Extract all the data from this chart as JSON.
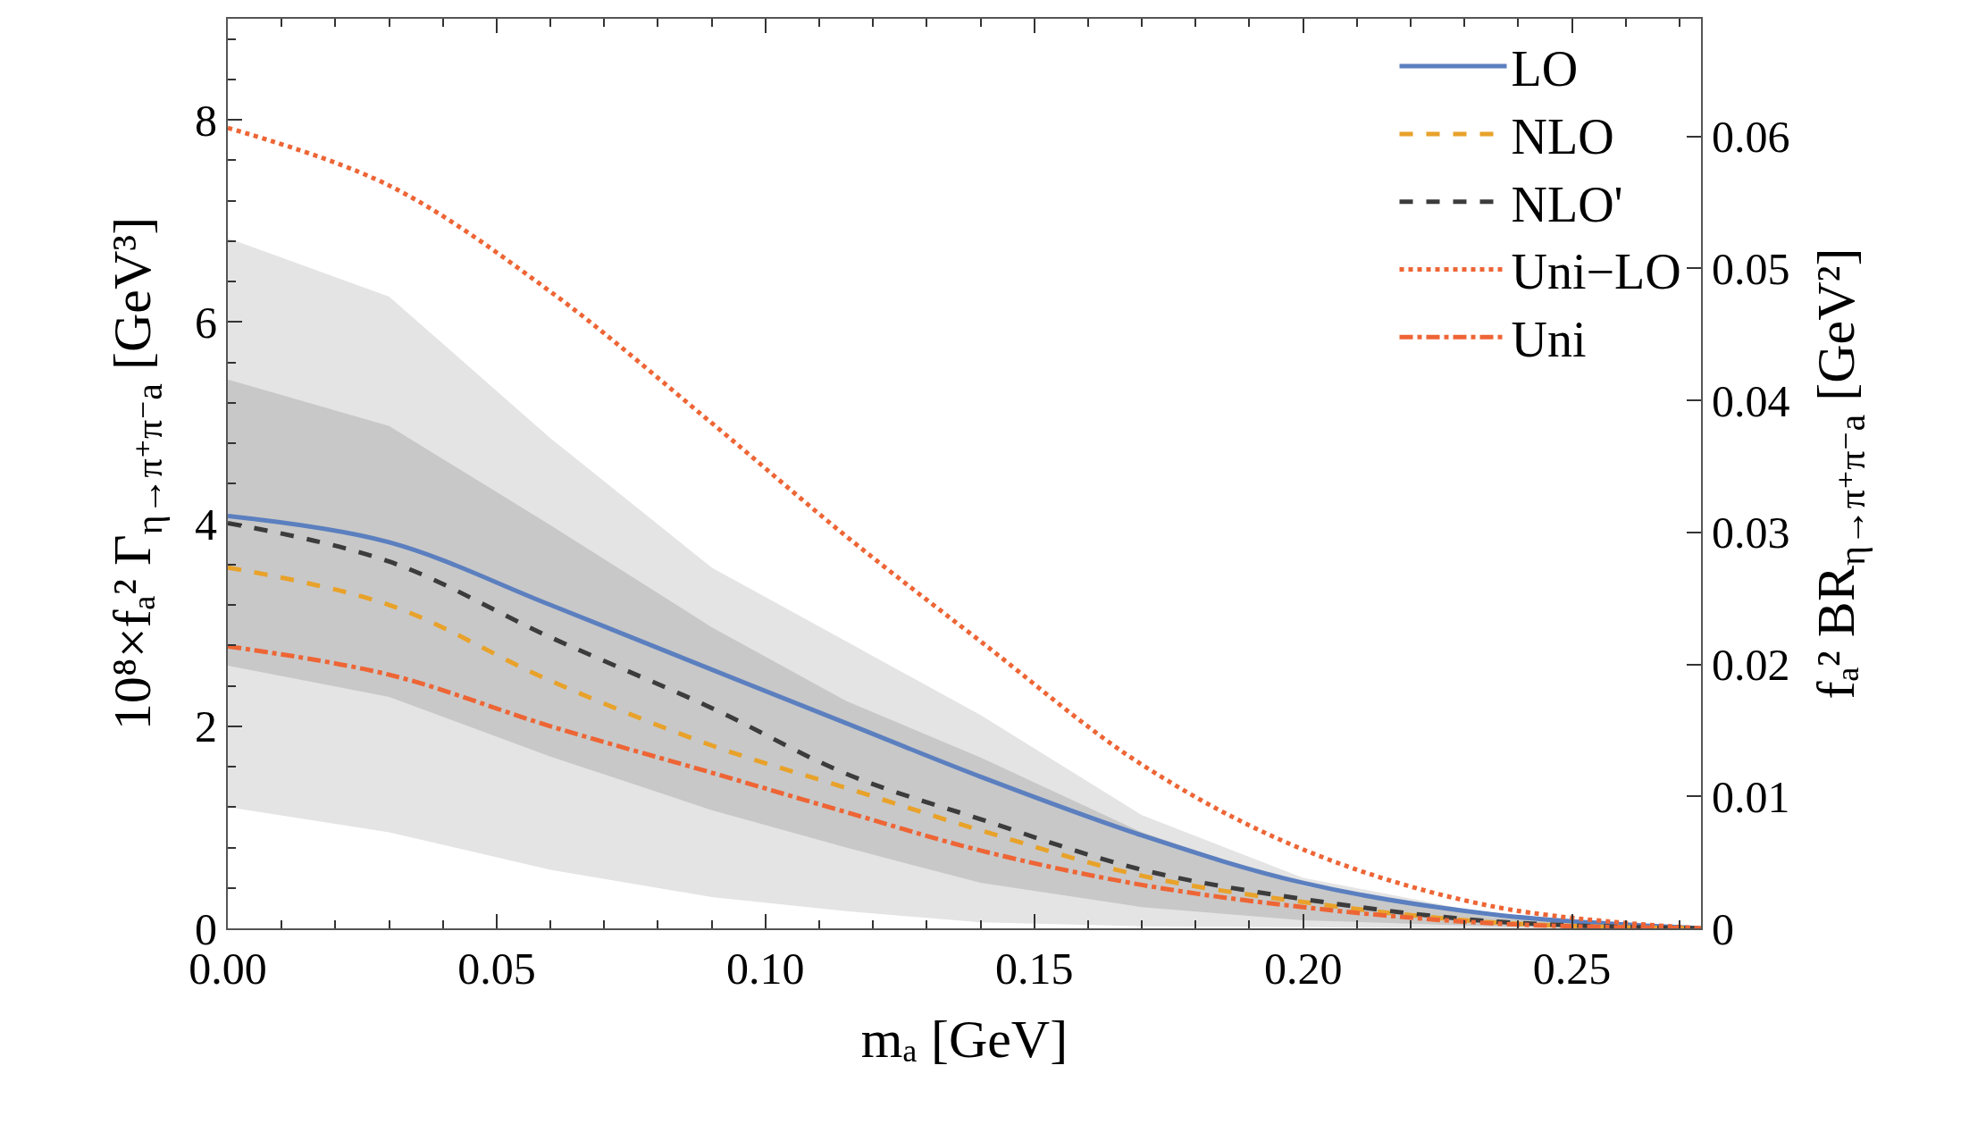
{
  "chart_data": {
    "type": "line",
    "xlabel": "mₐ [GeV]",
    "ylabel": "10⁸×fₐ² Γ$_{η→π⁺π⁻a}$ [GeV³]",
    "y2label": "fₐ² BR$_{η→π⁺π⁻a}$ [GeV²]",
    "x": [
      0,
      0.03,
      0.06,
      0.09,
      0.115,
      0.14,
      0.17,
      0.2,
      0.235,
      0.274
    ],
    "xlim": [
      0,
      0.274
    ],
    "xticks": [
      {
        "value": 0,
        "label": "0.00"
      },
      {
        "value": 0.05,
        "label": "0.05"
      },
      {
        "value": 0.1,
        "label": "0.10"
      },
      {
        "value": 0.15,
        "label": "0.15"
      },
      {
        "value": 0.2,
        "label": "0.20"
      },
      {
        "value": 0.25,
        "label": "0.25"
      }
    ],
    "ylim": [
      0,
      9
    ],
    "yticks": [
      0,
      2,
      4,
      6,
      8
    ],
    "y2lim": [
      0,
      0.0689
    ],
    "y2ticks": [
      0,
      0.01,
      0.02,
      0.03,
      0.04,
      0.05,
      0.06
    ],
    "grid": false,
    "legend": "top right",
    "marker": "none",
    "series": [
      {
        "name": "LO",
        "color": "#5b7fbf",
        "line_style": "solid",
        "values": [
          4.08,
          3.82,
          3.2,
          2.56,
          2.03,
          1.5,
          0.92,
          0.45,
          0.14,
          0
        ],
        "lower": [
          1.2,
          0.95,
          0.58,
          0.31,
          0.17,
          0.06,
          0.02,
          0.01,
          0,
          0
        ],
        "upper": [
          6.83,
          6.25,
          4.85,
          3.57,
          2.84,
          2.11,
          1.12,
          0.5,
          0.14,
          0
        ]
      },
      {
        "name": "NLO",
        "color": "#e8a22a",
        "line_style": "dashed",
        "values": [
          3.57,
          3.2,
          2.45,
          1.81,
          1.39,
          0.97,
          0.52,
          0.26,
          0.06,
          0
        ],
        "lower": [
          2.6,
          2.29,
          1.7,
          1.17,
          0.8,
          0.45,
          0.21,
          0.08,
          0.02,
          0
        ],
        "upper": [
          5.43,
          4.97,
          3.99,
          2.98,
          2.25,
          1.69,
          0.95,
          0.42,
          0.11,
          0
        ]
      },
      {
        "name": "NLO'",
        "color": "#3c3c3c",
        "line_style": "dashed",
        "values": [
          4.01,
          3.63,
          2.88,
          2.18,
          1.53,
          1.08,
          0.58,
          0.29,
          0.07,
          0
        ]
      },
      {
        "name": "Uni−LO",
        "color": "#ee6535",
        "line_style": "dotted",
        "values": [
          7.92,
          7.35,
          6.3,
          5.0,
          3.88,
          2.84,
          1.62,
          0.78,
          0.22,
          0
        ]
      },
      {
        "name": "Uni",
        "color": "#ee6535",
        "line_style": "dashdot",
        "values": [
          2.79,
          2.51,
          2.0,
          1.54,
          1.15,
          0.77,
          0.43,
          0.21,
          0.05,
          0
        ]
      }
    ]
  }
}
